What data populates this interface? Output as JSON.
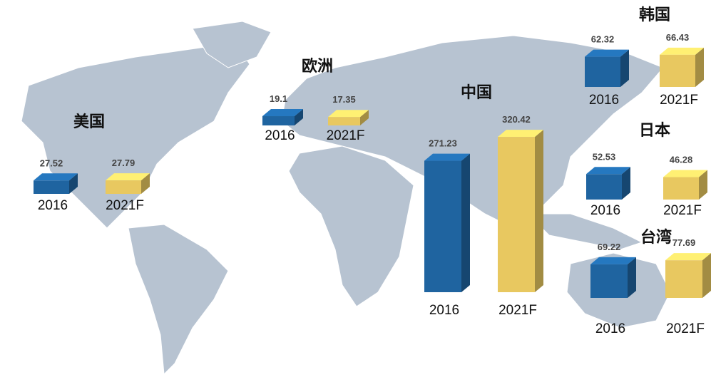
{
  "chart_data": [
    {
      "type": "bar",
      "title": "美国",
      "categories": [
        "2016",
        "2021F"
      ],
      "values": [
        27.52,
        27.79
      ],
      "colors": [
        "#1f64a0",
        "#e8c860"
      ]
    },
    {
      "type": "bar",
      "title": "欧洲",
      "categories": [
        "2016",
        "2021F"
      ],
      "values": [
        19.1,
        17.35
      ],
      "colors": [
        "#1f64a0",
        "#e8c860"
      ]
    },
    {
      "type": "bar",
      "title": "中国",
      "categories": [
        "2016",
        "2021F"
      ],
      "values": [
        271.23,
        320.42
      ],
      "colors": [
        "#1f64a0",
        "#e8c860"
      ]
    },
    {
      "type": "bar",
      "title": "韩国",
      "categories": [
        "2016",
        "2021F"
      ],
      "values": [
        62.32,
        66.43
      ],
      "colors": [
        "#1f64a0",
        "#e8c860"
      ]
    },
    {
      "type": "bar",
      "title": "日本",
      "categories": [
        "2016",
        "2021F"
      ],
      "values": [
        52.53,
        46.28
      ],
      "colors": [
        "#1f64a0",
        "#e8c860"
      ]
    },
    {
      "type": "bar",
      "title": "台湾",
      "categories": [
        "2016",
        "2021F"
      ],
      "values": [
        69.22,
        77.69
      ],
      "colors": [
        "#1f64a0",
        "#e8c860"
      ]
    }
  ]
}
